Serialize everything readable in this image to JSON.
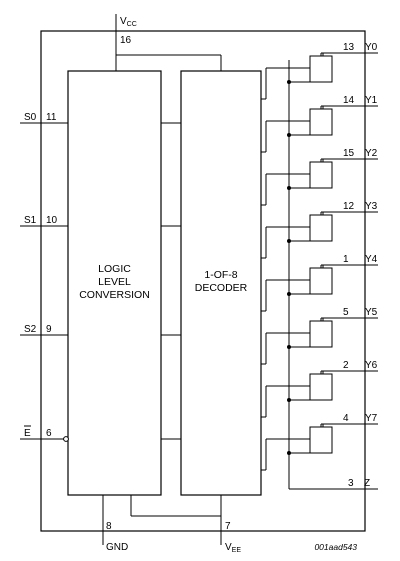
{
  "supply_pins": {
    "vcc": {
      "label": "V",
      "sub": "CC",
      "pin": "16"
    },
    "gnd": {
      "label": "GND",
      "pin": "8"
    },
    "vee": {
      "label": "V",
      "sub": "EE",
      "pin": "7"
    }
  },
  "inputs": [
    {
      "label": "S0",
      "pin": "11"
    },
    {
      "label": "S1",
      "pin": "10"
    },
    {
      "label": "S2",
      "pin": "9"
    },
    {
      "label": "E",
      "pin": "6",
      "overbar": true
    }
  ],
  "blocks": {
    "level": {
      "lines": [
        "LOGIC",
        "LEVEL",
        "CONVERSION"
      ]
    },
    "decoder": {
      "lines": [
        "1-OF-8",
        "DECODER"
      ]
    }
  },
  "outputs": [
    {
      "label": "Y0",
      "pin": "13"
    },
    {
      "label": "Y1",
      "pin": "14"
    },
    {
      "label": "Y2",
      "pin": "15"
    },
    {
      "label": "Y3",
      "pin": "12"
    },
    {
      "label": "Y4",
      "pin": "1"
    },
    {
      "label": "Y5",
      "pin": "5"
    },
    {
      "label": "Y6",
      "pin": "2"
    },
    {
      "label": "Y7",
      "pin": "4"
    }
  ],
  "common": {
    "label": "Z",
    "pin": "3"
  },
  "drawing_code": "001aad543"
}
